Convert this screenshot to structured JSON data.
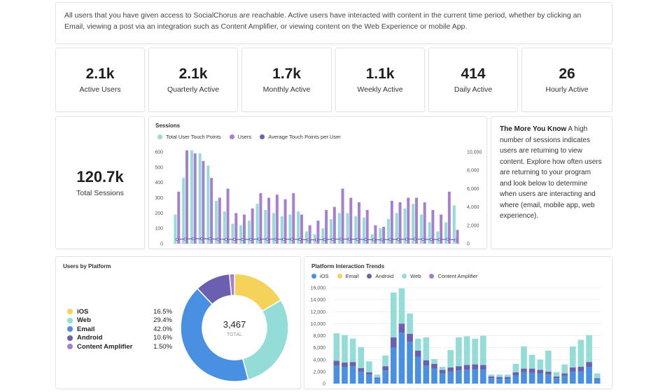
{
  "info": {
    "text": "All users that you have given access to SocialChorus are reachable. Active users have interacted with content in the current time period, whether by clicking an Email, viewing a post via an integration such as Content Amplifier, or viewing content on the Web Experience or mobile App."
  },
  "stats": [
    {
      "value": "2.1k",
      "label": "Active Users"
    },
    {
      "value": "2.1k",
      "label": "Quarterly Active"
    },
    {
      "value": "1.7k",
      "label": "Monthly Active"
    },
    {
      "value": "1.1k",
      "label": "Weekly Active"
    },
    {
      "value": "414",
      "label": "Daily Active"
    },
    {
      "value": "26",
      "label": "Hourly Active"
    }
  ],
  "total_sessions": {
    "value": "120.7k",
    "label": "Total Sessions"
  },
  "tip": {
    "title": "The More You Know",
    "body": " A high number of sessions indicates users are returning to view content. Explore how often users are returning to your program and look below to determine when users are interacting and where (email, mobile app, web experience)."
  },
  "colors": {
    "teal": "#93dcd8",
    "purple": "#a77fd1",
    "navy": "#6a5fb0",
    "ios": "#4a90e2",
    "email": "#f5d35a",
    "android": "#6a5fb0",
    "web": "#93dcd8",
    "content_amplifier": "#a77fd1"
  },
  "chart_data": [
    {
      "type": "bar",
      "title": "Sessions",
      "legend": [
        "Total User Touch Points",
        "Users",
        "Average Touch Points per User"
      ],
      "ylim_left": [
        0,
        600
      ],
      "yticks_left": [
        "0",
        "100",
        "200",
        "300",
        "400",
        "500",
        "600"
      ],
      "ylim_right": [
        0,
        10000
      ],
      "yticks_right": [
        "0",
        "2,000",
        "4,000",
        "6,000",
        "8,000",
        "10,000"
      ],
      "series": [
        {
          "name": "Total User Touch Points",
          "values": [
            190,
            430,
            610,
            590,
            510,
            280,
            210,
            130,
            120,
            150,
            260,
            220,
            200,
            180,
            190,
            210,
            80,
            60,
            100,
            160,
            200,
            200,
            180,
            170,
            60,
            100,
            160,
            200,
            230,
            260,
            190,
            140,
            80,
            140,
            250
          ]
        },
        {
          "name": "Users",
          "values": [
            340,
            610,
            590,
            540,
            430,
            300,
            360,
            200,
            190,
            230,
            330,
            300,
            320,
            290,
            330,
            190,
            120,
            150,
            220,
            240,
            360,
            300,
            270,
            220,
            120,
            110,
            280,
            270,
            300,
            300,
            270,
            220,
            190,
            340,
            90
          ]
        },
        {
          "name": "Average Touch Points per User",
          "values": [
            28,
            30,
            32,
            32,
            31,
            29,
            28,
            27,
            27,
            28,
            30,
            29,
            29,
            28,
            29,
            27,
            25,
            25,
            27,
            28,
            30,
            29,
            28,
            27,
            25,
            25,
            28,
            28,
            29,
            30,
            28,
            27,
            26,
            29,
            24
          ]
        }
      ]
    },
    {
      "type": "pie",
      "title": "Users by Platform",
      "center_value": "3,467",
      "center_label": "TOTAL",
      "slices": [
        {
          "name": "iOS",
          "value": 16.5,
          "label": "16.5%",
          "colorKey": "email"
        },
        {
          "name": "Web",
          "value": 29.4,
          "label": "29.4%",
          "colorKey": "web"
        },
        {
          "name": "Email",
          "value": 42.0,
          "label": "42.0%",
          "colorKey": "ios"
        },
        {
          "name": "Android",
          "value": 10.6,
          "label": "10.6%",
          "colorKey": "android"
        },
        {
          "name": "Content Amplifier",
          "value": 1.5,
          "label": "1.50%",
          "colorKey": "content_amplifier"
        }
      ]
    },
    {
      "type": "bar",
      "stacked": true,
      "title": "Platform Interaction Trends",
      "legend": [
        "iOS",
        "Email",
        "Android",
        "Web",
        "Content Amplifier"
      ],
      "ylim": [
        0,
        16000
      ],
      "yticks": [
        "0",
        "2,000",
        "4,000",
        "6,000",
        "8,000",
        "10,000",
        "12,000",
        "14,000",
        "16,000"
      ],
      "series": [
        {
          "name": "iOS",
          "values": [
            3000,
            2800,
            2900,
            2000,
            1500,
            800,
            2200,
            6000,
            8500,
            7000,
            4500,
            3000,
            2500,
            1700,
            2000,
            2200,
            2300,
            2400,
            2300,
            900,
            800,
            800,
            1400,
            1900,
            1800,
            1700,
            1500,
            900,
            1300,
            2000,
            2100,
            2800,
            700
          ]
        },
        {
          "name": "Email",
          "values": [
            0,
            0,
            0,
            0,
            0,
            0,
            0,
            0,
            0,
            0,
            0,
            0,
            0,
            0,
            0,
            0,
            0,
            0,
            0,
            0,
            0,
            0,
            0,
            0,
            0,
            0,
            0,
            0,
            0,
            0,
            0,
            0,
            0
          ]
        },
        {
          "name": "Android",
          "values": [
            800,
            700,
            700,
            600,
            400,
            200,
            700,
            1700,
            1500,
            1300,
            1000,
            900,
            800,
            600,
            700,
            700,
            800,
            800,
            800,
            300,
            300,
            300,
            500,
            600,
            700,
            600,
            500,
            300,
            400,
            700,
            700,
            800,
            200
          ]
        },
        {
          "name": "Web",
          "values": [
            4600,
            4600,
            3900,
            3500,
            1800,
            500,
            1800,
            7500,
            5900,
            3400,
            2000,
            3800,
            800,
            500,
            2900,
            4800,
            4800,
            4300,
            4900,
            300,
            400,
            400,
            1400,
            3700,
            2300,
            1700,
            3500,
            700,
            1500,
            3500,
            4500,
            4500,
            800
          ]
        },
        {
          "name": "Content Amplifier",
          "values": [
            0,
            0,
            0,
            0,
            0,
            0,
            0,
            0,
            0,
            0,
            0,
            0,
            0,
            0,
            0,
            0,
            0,
            0,
            0,
            0,
            0,
            0,
            0,
            0,
            0,
            0,
            0,
            0,
            0,
            0,
            0,
            0,
            0
          ]
        }
      ]
    }
  ]
}
